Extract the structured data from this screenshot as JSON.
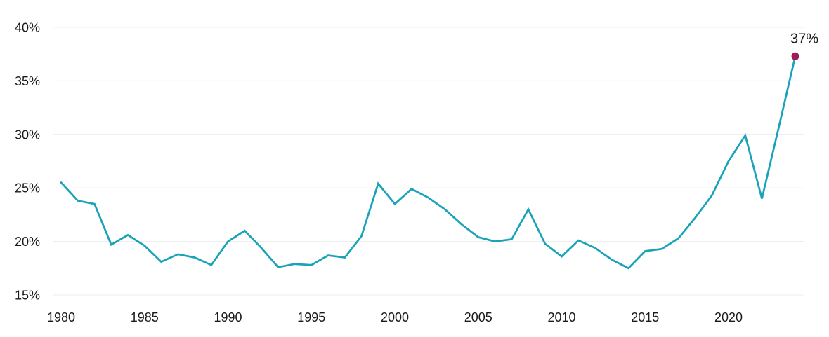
{
  "chart": {
    "colors": {
      "line": "#1aa3b8",
      "marker": "#a01b5c",
      "gridline": "#ececec",
      "text": "#1a1a1a",
      "background": "#ffffff"
    }
  },
  "chart_data": {
    "type": "line",
    "title": "",
    "xlabel": "",
    "ylabel": "",
    "x": [
      1980,
      1981,
      1982,
      1983,
      1984,
      1985,
      1986,
      1987,
      1988,
      1989,
      1990,
      1991,
      1992,
      1993,
      1994,
      1995,
      1996,
      1997,
      1998,
      1999,
      2000,
      2001,
      2002,
      2003,
      2004,
      2005,
      2006,
      2007,
      2008,
      2009,
      2010,
      2011,
      2012,
      2013,
      2014,
      2015,
      2016,
      2017,
      2018,
      2019,
      2020,
      2021,
      2022,
      2023,
      2024
    ],
    "series": [
      {
        "name": "Percent",
        "values": [
          25.5,
          23.8,
          23.5,
          19.7,
          20.6,
          19.6,
          18.1,
          18.8,
          18.5,
          17.8,
          20.0,
          21.0,
          19.4,
          17.6,
          17.9,
          17.8,
          18.7,
          18.5,
          20.5,
          25.4,
          23.5,
          24.9,
          24.1,
          23.0,
          21.6,
          20.4,
          20.0,
          20.2,
          23.0,
          19.8,
          18.6,
          20.1,
          19.4,
          18.3,
          17.5,
          19.1,
          19.3,
          20.3,
          22.2,
          24.3,
          27.5,
          29.9,
          24.0,
          30.6,
          37.3
        ]
      }
    ],
    "xticks": [
      1980,
      1985,
      1990,
      1995,
      2000,
      2005,
      2010,
      2015,
      2020
    ],
    "yticks": [
      15,
      20,
      25,
      30,
      35,
      40
    ],
    "ytick_suffix": "%",
    "xlim": [
      1980,
      2024
    ],
    "ylim": [
      15,
      40
    ],
    "grid": "horizontal-only",
    "legend": "none",
    "marker": "last-point-only",
    "annotation": {
      "x": 2024,
      "y": 37,
      "label": "37%"
    }
  }
}
